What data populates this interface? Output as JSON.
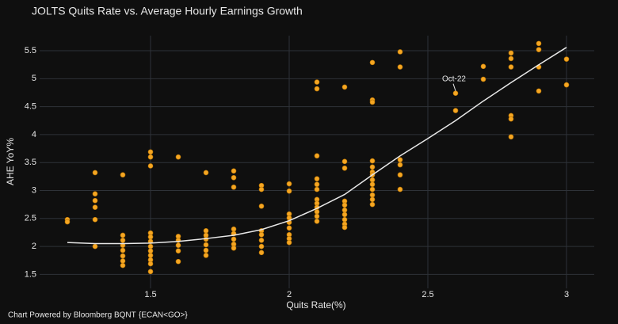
{
  "chart_data": {
    "type": "scatter",
    "title": "JOLTS Quits Rate vs. Average Hourly Earnings Growth",
    "x_label": "Quits Rate(%)",
    "y_label": "AHE YoY%",
    "footer": "Chart Powered by Bloomberg BQNT",
    "footer_code": "{ECAN<GO>}",
    "xlim": [
      1.1,
      3.1
    ],
    "ylim": [
      1.25,
      5.77
    ],
    "xticks": [
      1.5,
      2,
      2.5,
      3
    ],
    "yticks": [
      1.5,
      2,
      2.5,
      3,
      3.5,
      4,
      4.5,
      5,
      5.5
    ],
    "grid": true,
    "annotations": [
      {
        "text": "Oct-22",
        "x": 2.6,
        "y": 4.74
      }
    ],
    "series": [
      {
        "color": "#f5a623",
        "x": [
          1.2,
          1.2,
          1.3,
          1.3,
          1.3,
          1.3,
          1.3,
          1.3,
          1.4,
          1.4,
          1.4,
          1.4,
          1.4,
          1.4,
          1.4,
          1.4,
          1.5,
          1.5,
          1.5,
          1.5,
          1.5,
          1.5,
          1.5,
          1.5,
          1.5,
          1.5,
          1.5,
          1.5,
          1.6,
          1.6,
          1.6,
          1.6,
          1.6,
          1.6,
          1.7,
          1.7,
          1.7,
          1.7,
          1.7,
          1.7,
          1.7,
          1.8,
          1.8,
          1.8,
          1.8,
          1.8,
          1.8,
          1.8,
          1.8,
          1.9,
          1.9,
          1.9,
          1.9,
          1.9,
          1.9,
          1.9,
          1.9,
          2.0,
          2.0,
          2.0,
          2.0,
          2.0,
          2.0,
          2.0,
          2.0,
          2.0,
          2.1,
          2.1,
          2.1,
          2.1,
          2.1,
          2.1,
          2.1,
          2.1,
          2.1,
          2.1,
          2.1,
          2.1,
          2.2,
          2.2,
          2.2,
          2.2,
          2.2,
          2.2,
          2.2,
          2.2,
          2.2,
          2.2,
          2.3,
          2.3,
          2.3,
          2.3,
          2.3,
          2.3,
          2.3,
          2.3,
          2.3,
          2.3,
          2.3,
          2.3,
          2.3,
          2.4,
          2.4,
          2.4,
          2.4,
          2.4,
          2.4,
          2.6,
          2.6,
          2.7,
          2.7,
          2.8,
          2.8,
          2.8,
          2.8,
          2.8,
          2.8,
          2.9,
          2.9,
          2.9,
          2.9,
          3.0,
          3.0
        ],
        "values": [
          2.48,
          2.44,
          3.32,
          2.94,
          2.82,
          2.7,
          2.48,
          2.0,
          3.28,
          2.2,
          2.11,
          2.02,
          1.93,
          1.83,
          1.74,
          1.66,
          3.69,
          3.6,
          3.44,
          2.24,
          2.17,
          2.09,
          2.0,
          1.92,
          1.84,
          1.76,
          1.69,
          1.55,
          3.6,
          2.18,
          2.11,
          2.02,
          1.92,
          1.73,
          3.32,
          2.28,
          2.2,
          2.13,
          2.03,
          1.93,
          1.84,
          3.35,
          3.23,
          3.06,
          2.31,
          2.23,
          2.13,
          2.04,
          1.97,
          3.09,
          3.02,
          2.72,
          2.28,
          2.21,
          2.11,
          2.0,
          1.89,
          3.12,
          2.99,
          2.58,
          2.51,
          2.43,
          2.33,
          2.21,
          2.14,
          2.07,
          4.94,
          4.82,
          3.62,
          3.21,
          3.11,
          3.02,
          2.84,
          2.77,
          2.7,
          2.62,
          2.54,
          2.45,
          4.85,
          3.52,
          3.4,
          2.81,
          2.74,
          2.65,
          2.57,
          2.48,
          2.4,
          2.34,
          5.29,
          4.62,
          4.58,
          3.53,
          3.42,
          3.33,
          3.28,
          3.19,
          3.11,
          3.02,
          2.92,
          2.84,
          2.75,
          5.48,
          5.21,
          3.55,
          3.46,
          3.28,
          3.02,
          4.74,
          4.43,
          5.22,
          4.99,
          5.46,
          5.36,
          5.21,
          4.34,
          4.28,
          3.96,
          5.63,
          5.52,
          5.21,
          4.78,
          5.35,
          4.89
        ]
      },
      {
        "type": "line",
        "color": "#e8e8e8",
        "x": [
          1.2,
          1.3,
          1.4,
          1.5,
          1.6,
          1.7,
          1.8,
          1.9,
          2.0,
          2.1,
          2.2,
          2.3,
          2.4,
          2.5,
          2.6,
          2.7,
          2.8,
          2.9,
          3.0
        ],
        "values": [
          2.07,
          2.05,
          2.05,
          2.06,
          2.09,
          2.14,
          2.2,
          2.3,
          2.46,
          2.68,
          2.93,
          3.28,
          3.62,
          3.93,
          4.25,
          4.6,
          4.93,
          5.25,
          5.56
        ]
      }
    ]
  }
}
